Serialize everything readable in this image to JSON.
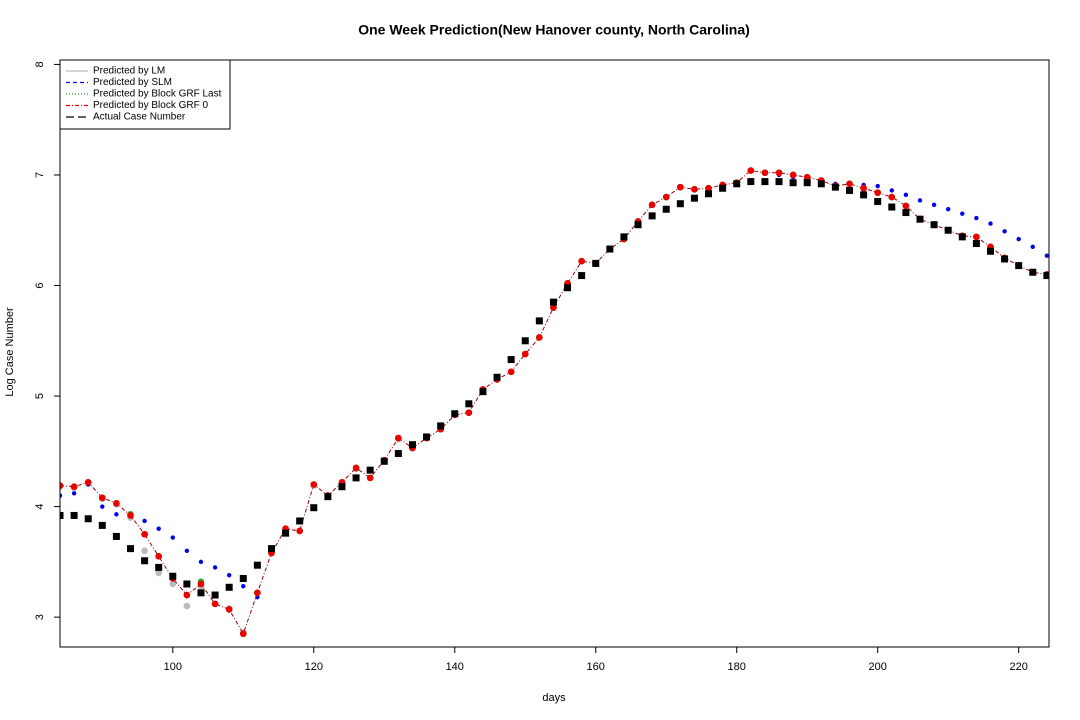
{
  "chart_data": {
    "type": "scatter",
    "title": "One Week Prediction(New Hanover county, North Carolina)",
    "x_label": "days",
    "y_label": "Log Case Number",
    "xlim": [
      84,
      224.3
    ],
    "ylim": [
      2.73,
      8.04
    ],
    "xticks": [
      100,
      120,
      140,
      160,
      180,
      200,
      220
    ],
    "yticks": [
      3,
      4,
      5,
      6,
      7,
      8
    ],
    "legend": "top-left",
    "x": [
      84,
      86,
      88,
      90,
      92,
      94,
      96,
      98,
      100,
      102,
      104,
      106,
      108,
      110,
      112,
      114,
      116,
      118,
      120,
      122,
      124,
      126,
      128,
      130,
      132,
      134,
      136,
      138,
      140,
      142,
      144,
      146,
      148,
      150,
      152,
      154,
      156,
      158,
      160,
      162,
      164,
      166,
      168,
      170,
      172,
      174,
      176,
      178,
      180,
      182,
      184,
      186,
      188,
      190,
      192,
      194,
      196,
      198,
      200,
      202,
      204,
      206,
      208,
      210,
      212,
      214,
      216,
      218,
      220,
      222,
      224
    ],
    "series": [
      {
        "name": "Predicted by LM",
        "color": "#bbbbbb",
        "marker": "circle",
        "dash": "1,0",
        "values": [
          4.18,
          4.17,
          4.21,
          4.07,
          4.02,
          3.9,
          3.6,
          3.4,
          3.3,
          3.1,
          3.28,
          3.12,
          3.08,
          2.86,
          3.22,
          3.58,
          3.79,
          3.78,
          4.19,
          4.1,
          4.22,
          4.34,
          4.26,
          4.42,
          4.61,
          4.53,
          4.62,
          4.7,
          4.83,
          4.85,
          5.06,
          5.15,
          5.22,
          5.38,
          5.53,
          5.8,
          6.02,
          6.22,
          6.2,
          6.33,
          6.42,
          6.58,
          6.73,
          6.8,
          6.89,
          6.87,
          6.88,
          6.91,
          6.93,
          7.04,
          7.02,
          7.02,
          7.0,
          6.98,
          6.95,
          6.9,
          6.92,
          6.88,
          6.84,
          6.8,
          6.72,
          6.6,
          6.55,
          6.5,
          6.45,
          6.44,
          6.35,
          6.25,
          6.18,
          6.12,
          6.1
        ]
      },
      {
        "name": "Predicted by SLM",
        "color": "#0000ee",
        "marker": "dot",
        "dash": "4,3",
        "values": [
          4.1,
          4.12,
          4.2,
          4.0,
          3.93,
          3.92,
          3.87,
          3.8,
          3.72,
          3.6,
          3.5,
          3.45,
          3.38,
          3.28,
          3.18,
          3.58,
          3.8,
          3.78,
          4.2,
          4.1,
          4.22,
          4.35,
          4.26,
          4.42,
          4.62,
          4.53,
          4.62,
          4.7,
          4.83,
          4.85,
          5.06,
          5.15,
          5.22,
          5.38,
          5.53,
          5.8,
          6.02,
          6.22,
          6.2,
          6.33,
          6.42,
          6.58,
          6.73,
          6.8,
          6.89,
          6.87,
          6.88,
          6.91,
          6.93,
          7.04,
          7.02,
          7.0,
          6.98,
          6.97,
          6.95,
          6.92,
          6.92,
          6.91,
          6.9,
          6.86,
          6.82,
          6.77,
          6.73,
          6.69,
          6.65,
          6.61,
          6.56,
          6.49,
          6.42,
          6.35,
          6.27
        ]
      },
      {
        "name": "Predicted by Block GRF Last",
        "color": "#22aa22",
        "marker": "circle",
        "dash": "1,2",
        "values": [
          4.19,
          4.18,
          4.22,
          4.08,
          4.03,
          3.93,
          3.75,
          3.55,
          3.35,
          3.2,
          3.32,
          3.12,
          3.07,
          2.85,
          3.22,
          3.58,
          3.8,
          3.78,
          4.2,
          4.1,
          4.22,
          4.35,
          4.26,
          4.42,
          4.62,
          4.53,
          4.62,
          4.7,
          4.83,
          4.85,
          5.06,
          5.15,
          5.22,
          5.38,
          5.53,
          5.8,
          6.02,
          6.22,
          6.2,
          6.33,
          6.42,
          6.58,
          6.73,
          6.8,
          6.89,
          6.87,
          6.88,
          6.91,
          6.93,
          7.04,
          7.02,
          7.02,
          7.0,
          6.98,
          6.95,
          6.9,
          6.92,
          6.88,
          6.84,
          6.8,
          6.72,
          6.6,
          6.55,
          6.5,
          6.45,
          6.44,
          6.35,
          6.25,
          6.18,
          6.12,
          6.1
        ]
      },
      {
        "name": "Predicted by Block GRF 0",
        "color": "#ee0000",
        "marker": "circle",
        "dash": "4,2,1,2",
        "values": [
          4.19,
          4.18,
          4.22,
          4.08,
          4.03,
          3.92,
          3.75,
          3.55,
          3.35,
          3.2,
          3.3,
          3.12,
          3.07,
          2.85,
          3.22,
          3.58,
          3.8,
          3.78,
          4.2,
          4.1,
          4.22,
          4.35,
          4.26,
          4.42,
          4.62,
          4.53,
          4.62,
          4.7,
          4.83,
          4.85,
          5.06,
          5.15,
          5.22,
          5.38,
          5.53,
          5.8,
          6.02,
          6.22,
          6.2,
          6.33,
          6.42,
          6.58,
          6.73,
          6.8,
          6.89,
          6.87,
          6.88,
          6.91,
          6.93,
          7.04,
          7.02,
          7.02,
          7.0,
          6.98,
          6.95,
          6.9,
          6.92,
          6.88,
          6.84,
          6.8,
          6.72,
          6.6,
          6.55,
          6.5,
          6.45,
          6.44,
          6.35,
          6.25,
          6.18,
          6.12,
          6.1
        ]
      },
      {
        "name": "Actual Case Number",
        "color": "#000000",
        "marker": "square",
        "dash": "8,4",
        "values": [
          3.92,
          3.92,
          3.89,
          3.83,
          3.73,
          3.62,
          3.51,
          3.45,
          3.37,
          3.3,
          3.22,
          3.2,
          3.27,
          3.35,
          3.47,
          3.62,
          3.76,
          3.87,
          3.99,
          4.09,
          4.18,
          4.26,
          4.33,
          4.41,
          4.48,
          4.56,
          4.63,
          4.73,
          4.84,
          4.93,
          5.04,
          5.17,
          5.33,
          5.5,
          5.68,
          5.85,
          5.98,
          6.09,
          6.2,
          6.33,
          6.44,
          6.55,
          6.63,
          6.69,
          6.74,
          6.79,
          6.83,
          6.88,
          6.92,
          6.94,
          6.94,
          6.94,
          6.93,
          6.93,
          6.92,
          6.89,
          6.86,
          6.82,
          6.76,
          6.71,
          6.66,
          6.6,
          6.55,
          6.5,
          6.44,
          6.38,
          6.31,
          6.24,
          6.18,
          6.12,
          6.09
        ]
      }
    ]
  }
}
